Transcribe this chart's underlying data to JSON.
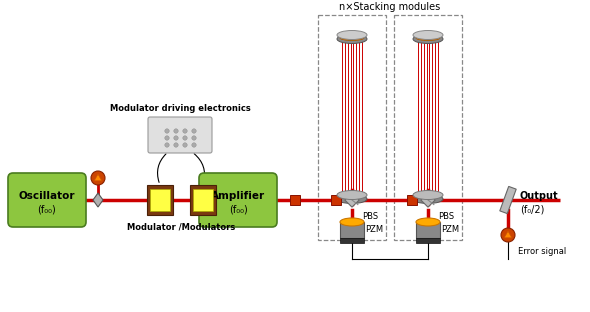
{
  "bg_color": "#ffffff",
  "title": "n×Stacking modules",
  "beam_color": "#cc0000",
  "green_fc": "#8dc63f",
  "green_ec": "#4a7c1f",
  "gray_light": "#cccccc",
  "gray_mid": "#999999",
  "gray_dark": "#666666",
  "oscillator_label": "Oscillator",
  "oscillator_sub": "(f₀₀)",
  "amplifier_label": "Amplifier",
  "amplifier_sub": "(f₀₀)",
  "output_label": "Output",
  "output_sub": "(f₀/2)",
  "mod_electronics_label": "Modulator driving electronics",
  "mod_label": "Modulator /Modulators",
  "pbs_label": "PBS",
  "pzm_label": "PZM",
  "error_label": "Error signal",
  "figw": 5.9,
  "figh": 3.12,
  "dpi": 100
}
